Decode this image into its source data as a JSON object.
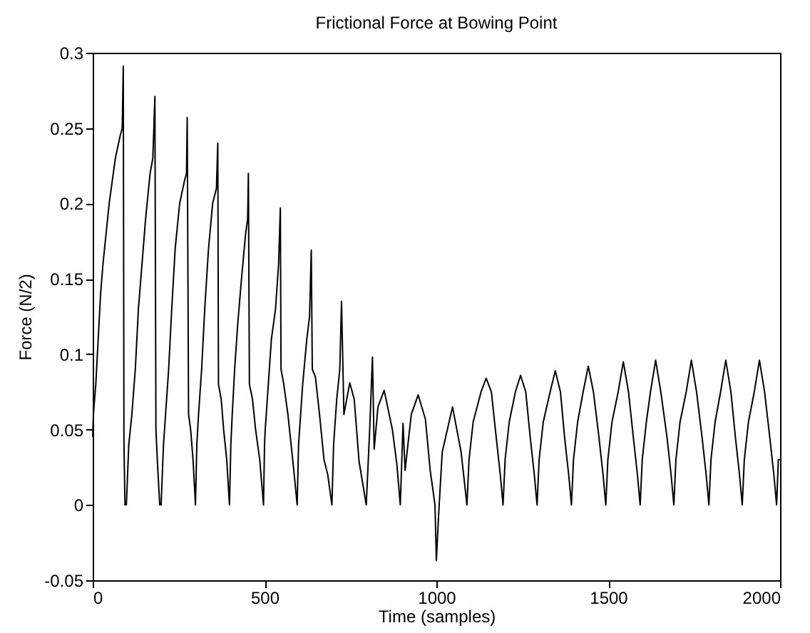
{
  "chart_data": {
    "type": "line",
    "title": "Frictional Force at Bowing Point",
    "xlabel": "Time (samples)",
    "ylabel": "Force (N/2)",
    "x": [
      0,
      2,
      9,
      16,
      23,
      30,
      39,
      48,
      57,
      66,
      80,
      86,
      89,
      91,
      94,
      98,
      105,
      114,
      124,
      133,
      140,
      154,
      167,
      175,
      181,
      184,
      188,
      195,
      199,
      206,
      212,
      221,
      230,
      240,
      253,
      267,
      273,
      275,
      279,
      285,
      292,
      299,
      303,
      308,
      317,
      326,
      337,
      349,
      360,
      364,
      366,
      374,
      381,
      390,
      398,
      402,
      406,
      413,
      422,
      433,
      445,
      451,
      453,
      456,
      465,
      474,
      486,
      497,
      500,
      502,
      511,
      520,
      532,
      541,
      546,
      548,
      556,
      568,
      582,
      595,
      599,
      602,
      611,
      623,
      631,
      636,
      639,
      648,
      660,
      673,
      684,
      696,
      701,
      710,
      719,
      724,
      731,
      748,
      761,
      775,
      796,
      806,
      814,
      819,
      830,
      848,
      872,
      885,
      895,
      903,
      909,
      927,
      947,
      968,
      982,
      996,
      1000,
      1006,
      1017,
      1047,
      1072,
      1089,
      1095,
      1107,
      1130,
      1145,
      1160,
      1174,
      1186,
      1194,
      1200,
      1212,
      1230,
      1245,
      1260,
      1273,
      1285,
      1293,
      1299,
      1311,
      1331,
      1346,
      1361,
      1373,
      1385,
      1393,
      1399,
      1411,
      1427,
      1442,
      1457,
      1473,
      1485,
      1493,
      1499,
      1511,
      1529,
      1544,
      1559,
      1573,
      1585,
      1593,
      1599,
      1611,
      1623,
      1638,
      1653,
      1671,
      1683,
      1691,
      1697,
      1709,
      1727,
      1742,
      1757,
      1773,
      1785,
      1793,
      1799,
      1811,
      1827,
      1842,
      1857,
      1870,
      1882,
      1890,
      1896,
      1908,
      1925,
      1940,
      1955,
      1970,
      1982,
      1990,
      1995,
      2000
    ],
    "series": [
      {
        "color": "#000000",
        "values": [
          0.045,
          0.06,
          0.08,
          0.11,
          0.14,
          0.16,
          0.18,
          0.2,
          0.215,
          0.23,
          0.245,
          0.25,
          0.291,
          0.04,
          0,
          0,
          0.04,
          0.06,
          0.09,
          0.13,
          0.15,
          0.19,
          0.22,
          0.23,
          0.271,
          0.05,
          0.03,
          0,
          0,
          0.04,
          0.06,
          0.09,
          0.13,
          0.17,
          0.2,
          0.215,
          0.22,
          0.257,
          0.06,
          0.05,
          0.03,
          0,
          0.04,
          0.06,
          0.09,
          0.13,
          0.17,
          0.2,
          0.21,
          0.24,
          0.08,
          0.07,
          0.05,
          0.03,
          0,
          0.04,
          0.06,
          0.09,
          0.12,
          0.15,
          0.18,
          0.19,
          0.22,
          0.08,
          0.07,
          0.05,
          0.03,
          0,
          0.04,
          0.05,
          0.08,
          0.11,
          0.13,
          0.16,
          0.197,
          0.09,
          0.08,
          0.06,
          0.03,
          0,
          0.04,
          0.05,
          0.08,
          0.11,
          0.125,
          0.169,
          0.09,
          0.085,
          0.06,
          0.03,
          0.02,
          0,
          0.04,
          0.07,
          0.09,
          0.135,
          0.06,
          0.081,
          0.07,
          0.029,
          0,
          0.05,
          0.098,
          0.037,
          0.065,
          0.076,
          0.05,
          0.027,
          0,
          0.054,
          0.023,
          0.06,
          0.073,
          0.057,
          0.023,
          0,
          -0.037,
          -0.009,
          0.035,
          0.065,
          0.035,
          0,
          0.03,
          0.055,
          0.075,
          0.084,
          0.075,
          0.045,
          0.02,
          0,
          0.03,
          0.055,
          0.075,
          0.086,
          0.075,
          0.045,
          0.02,
          0,
          0.03,
          0.055,
          0.075,
          0.089,
          0.075,
          0.045,
          0.02,
          0,
          0.03,
          0.055,
          0.075,
          0.092,
          0.075,
          0.045,
          0.02,
          0,
          0.03,
          0.055,
          0.075,
          0.095,
          0.075,
          0.045,
          0.02,
          0,
          0.03,
          0.055,
          0.075,
          0.096,
          0.075,
          0.045,
          0.02,
          0,
          0.03,
          0.055,
          0.075,
          0.096,
          0.075,
          0.045,
          0.02,
          0,
          0.03,
          0.055,
          0.075,
          0.096,
          0.075,
          0.045,
          0.02,
          0,
          0.03,
          0.055,
          0.075,
          0.096,
          0.075,
          0.045,
          0.02,
          0,
          0.03,
          0.03
        ]
      }
    ],
    "xlim": [
      0,
      2000
    ],
    "xticks": [
      0,
      500,
      1000,
      1500,
      2000
    ],
    "ylim": [
      -0.05,
      0.3
    ],
    "yticks": [
      -0.05,
      0,
      0.05,
      0.1,
      0.15,
      0.2,
      0.25,
      0.3
    ]
  }
}
